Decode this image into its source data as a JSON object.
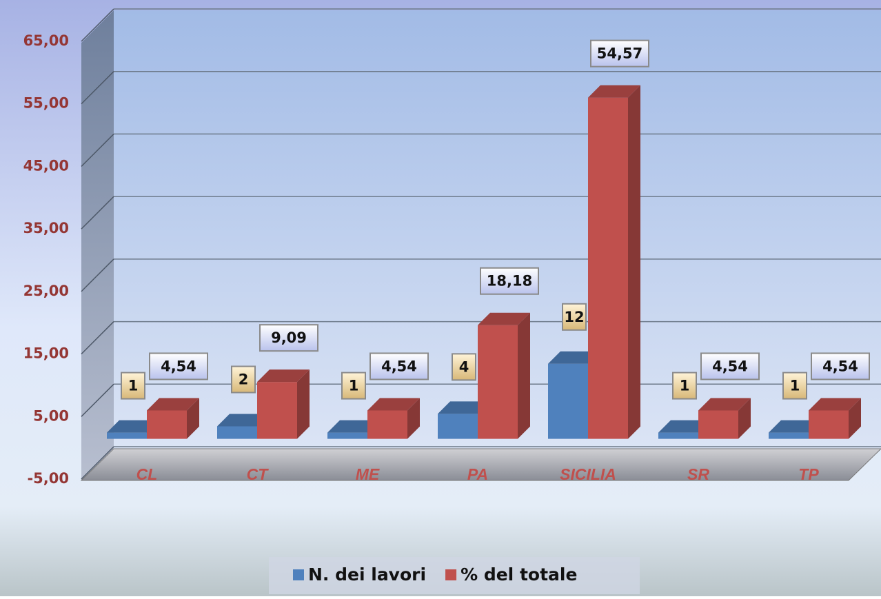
{
  "chart_data": {
    "type": "bar3d",
    "categories": [
      "CL",
      "CT",
      "ME",
      "PA",
      "SICILIA",
      "SR",
      "TP"
    ],
    "series": [
      {
        "name": "N. dei lavori",
        "color": "#4f81bd",
        "values": [
          1,
          2,
          1,
          4,
          12,
          1,
          1
        ]
      },
      {
        "name": "% del totale",
        "color": "#c0504d",
        "values": [
          4.54,
          9.09,
          4.54,
          18.18,
          54.57,
          4.54,
          4.54
        ],
        "value_labels": [
          "4,54",
          "9,09",
          "4,54",
          "18,18",
          "54,57",
          "4,54",
          "4,54"
        ]
      }
    ],
    "ylim": [
      -5,
      65
    ],
    "yticks": [
      {
        "value": -5,
        "label": "-5,00"
      },
      {
        "value": 5,
        "label": "5,00"
      },
      {
        "value": 15,
        "label": "15,00"
      },
      {
        "value": 25,
        "label": "25,00"
      },
      {
        "value": 35,
        "label": "35,00"
      },
      {
        "value": 45,
        "label": "45,00"
      },
      {
        "value": 55,
        "label": "55,00"
      },
      {
        "value": 65,
        "label": "65,00"
      }
    ],
    "grid": true,
    "legend": "bottom"
  }
}
